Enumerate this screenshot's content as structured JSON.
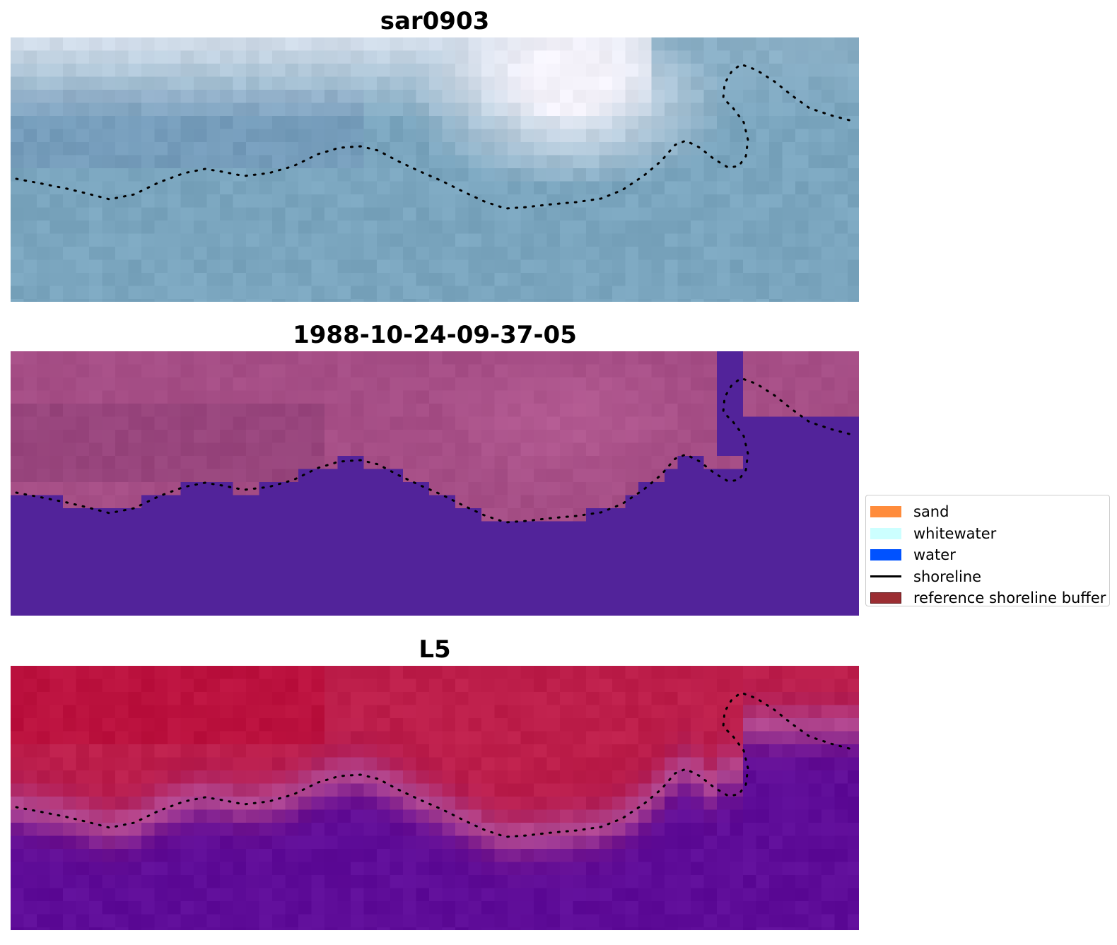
{
  "panels": [
    {
      "title": "sar0903",
      "style": "rgb"
    },
    {
      "title": "1988-10-24-09-37-05",
      "style": "classified"
    },
    {
      "title": "L5",
      "style": "probability"
    }
  ],
  "legend": {
    "items": [
      {
        "label": "sand",
        "color": "#ff8c3c",
        "kind": "patch"
      },
      {
        "label": "whitewater",
        "color": "#ccffff",
        "kind": "patch"
      },
      {
        "label": "water",
        "color": "#0052ff",
        "kind": "patch"
      },
      {
        "label": "shoreline",
        "color": "#000000",
        "kind": "line"
      },
      {
        "label": "reference shoreline buffer",
        "color": "#9b2d32",
        "kind": "patch"
      }
    ]
  },
  "colors": {
    "rgb_sky": "#7aa5be",
    "rgb_bright": "#f4f2fa",
    "class_land": "#a95088",
    "class_water": "#52239a",
    "prob_land": "#bd1e4a",
    "prob_water": "#5e0c98",
    "shoreline_dots": "#000000"
  }
}
